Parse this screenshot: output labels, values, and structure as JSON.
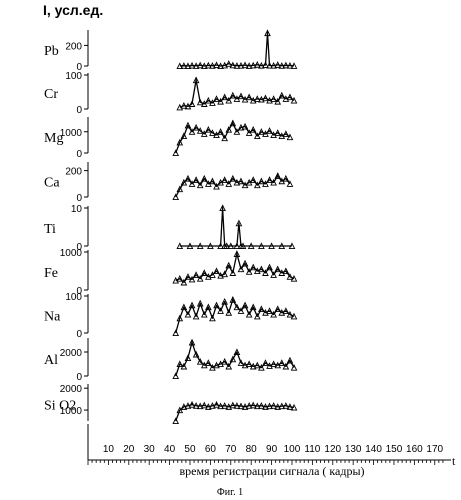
{
  "figure": {
    "yunit": "I, усл.ед.",
    "xlabel": "время регистрации сигнала ( кадры)",
    "xaxis_end": "t",
    "caption": "Фиг. 1"
  },
  "colors": {
    "ink": "#000000",
    "background": "#ffffff"
  },
  "chart_data": [
    {
      "type": "line",
      "label": "Pb",
      "yticks": [
        0,
        200
      ],
      "ylim": [
        0,
        330
      ],
      "x": [
        45,
        47,
        49,
        51,
        53,
        55,
        57,
        59,
        61,
        63,
        65,
        67,
        69,
        71,
        73,
        75,
        77,
        79,
        81,
        83,
        85,
        87,
        88,
        89,
        91,
        93,
        95,
        97,
        99,
        101
      ],
      "values": [
        0,
        3,
        0,
        5,
        2,
        8,
        0,
        6,
        3,
        10,
        0,
        6,
        22,
        8,
        3,
        4,
        9,
        2,
        6,
        13,
        4,
        10,
        320,
        5,
        4,
        12,
        3,
        7,
        4,
        2
      ]
    },
    {
      "type": "line",
      "label": "Cr",
      "yticks": [
        0,
        100
      ],
      "ylim": [
        0,
        100
      ],
      "x": [
        45,
        47,
        49,
        51,
        53,
        55,
        57,
        59,
        61,
        63,
        65,
        67,
        69,
        71,
        73,
        75,
        77,
        79,
        81,
        83,
        85,
        87,
        89,
        91,
        93,
        95,
        97,
        99,
        101
      ],
      "values": [
        5,
        10,
        8,
        15,
        85,
        20,
        15,
        25,
        18,
        30,
        22,
        35,
        25,
        40,
        30,
        38,
        28,
        35,
        25,
        30,
        28,
        32,
        25,
        30,
        22,
        40,
        30,
        35,
        25
      ]
    },
    {
      "type": "line",
      "label": "Mg",
      "yticks": [
        0,
        1000
      ],
      "ylim": [
        0,
        1600
      ],
      "x": [
        43,
        45,
        47,
        49,
        51,
        53,
        55,
        57,
        59,
        61,
        63,
        65,
        67,
        69,
        71,
        73,
        75,
        77,
        79,
        81,
        83,
        85,
        87,
        89,
        91,
        93,
        95,
        97,
        99
      ],
      "values": [
        0,
        500,
        800,
        1300,
        1000,
        1200,
        1050,
        900,
        1100,
        950,
        850,
        1000,
        700,
        1100,
        1400,
        1000,
        1200,
        1250,
        950,
        1100,
        800,
        1000,
        900,
        1050,
        850,
        950,
        800,
        900,
        750
      ]
    },
    {
      "type": "line",
      "label": "Ca",
      "yticks": [
        0,
        200
      ],
      "ylim": [
        0,
        250
      ],
      "x": [
        43,
        45,
        47,
        49,
        51,
        53,
        55,
        57,
        59,
        61,
        63,
        65,
        67,
        69,
        71,
        73,
        75,
        77,
        79,
        81,
        83,
        85,
        87,
        89,
        91,
        93,
        95,
        97,
        99
      ],
      "values": [
        0,
        60,
        110,
        140,
        100,
        130,
        90,
        140,
        100,
        120,
        80,
        110,
        130,
        100,
        140,
        110,
        120,
        90,
        110,
        130,
        90,
        120,
        100,
        130,
        110,
        160,
        120,
        140,
        100
      ]
    },
    {
      "type": "line",
      "label": "Ti",
      "yticks": [
        0,
        10
      ],
      "ylim": [
        0,
        10
      ],
      "x": [
        45,
        50,
        55,
        60,
        65,
        66,
        67,
        68,
        70,
        73,
        74,
        75,
        76,
        80,
        85,
        90,
        95,
        100
      ],
      "values": [
        0,
        0,
        0,
        0,
        0,
        10,
        0,
        0,
        0,
        0,
        6,
        0,
        0,
        0,
        0,
        0,
        0,
        0
      ]
    },
    {
      "type": "line",
      "label": "Fe",
      "yticks": [
        0,
        1000
      ],
      "ylim": [
        0,
        1000
      ],
      "x": [
        43,
        45,
        47,
        49,
        51,
        53,
        55,
        57,
        59,
        61,
        63,
        65,
        67,
        69,
        71,
        73,
        75,
        77,
        79,
        81,
        83,
        85,
        87,
        89,
        91,
        93,
        95,
        97,
        99,
        101
      ],
      "values": [
        250,
        300,
        200,
        350,
        280,
        400,
        300,
        450,
        350,
        400,
        500,
        380,
        420,
        650,
        450,
        950,
        550,
        700,
        480,
        600,
        500,
        550,
        450,
        600,
        400,
        550,
        450,
        500,
        350,
        300
      ]
    },
    {
      "type": "line",
      "label": "Na",
      "yticks": [
        0,
        100
      ],
      "ylim": [
        0,
        100
      ],
      "x": [
        43,
        45,
        47,
        49,
        51,
        53,
        55,
        57,
        59,
        61,
        63,
        65,
        67,
        69,
        71,
        73,
        75,
        77,
        79,
        81,
        83,
        85,
        87,
        89,
        91,
        93,
        95,
        97,
        99,
        101
      ],
      "values": [
        0,
        40,
        70,
        50,
        75,
        45,
        80,
        50,
        70,
        40,
        75,
        60,
        85,
        55,
        90,
        70,
        60,
        75,
        50,
        70,
        45,
        65,
        55,
        60,
        50,
        65,
        55,
        60,
        50,
        45
      ]
    },
    {
      "type": "line",
      "label": "Al",
      "yticks": [
        0,
        2000
      ],
      "ylim": [
        0,
        3000
      ],
      "x": [
        43,
        45,
        47,
        49,
        51,
        53,
        55,
        57,
        59,
        61,
        63,
        65,
        67,
        69,
        71,
        73,
        75,
        77,
        79,
        81,
        83,
        85,
        87,
        89,
        91,
        93,
        95,
        97,
        99,
        101
      ],
      "values": [
        0,
        1000,
        800,
        1500,
        2800,
        1800,
        1200,
        900,
        1100,
        700,
        900,
        1000,
        1200,
        800,
        1400,
        2000,
        1100,
        900,
        1000,
        800,
        900,
        700,
        1100,
        850,
        1000,
        900,
        1100,
        800,
        1300,
        700
      ]
    },
    {
      "type": "line",
      "label": "Si O2",
      "yticks": [
        1000,
        2000
      ],
      "ylim": [
        500,
        2100
      ],
      "x": [
        43,
        45,
        47,
        49,
        51,
        53,
        55,
        57,
        59,
        61,
        63,
        65,
        67,
        69,
        71,
        73,
        75,
        77,
        79,
        81,
        83,
        85,
        87,
        89,
        91,
        93,
        95,
        97,
        99,
        101
      ],
      "values": [
        500,
        1000,
        1150,
        1200,
        1250,
        1200,
        1180,
        1220,
        1150,
        1200,
        1250,
        1180,
        1200,
        1150,
        1220,
        1200,
        1180,
        1150,
        1200,
        1220,
        1180,
        1200,
        1150,
        1180,
        1200,
        1150,
        1180,
        1200,
        1150,
        1120
      ]
    }
  ],
  "xaxis": {
    "ticks": [
      10,
      20,
      30,
      40,
      50,
      60,
      70,
      80,
      90,
      100,
      110,
      120,
      130,
      140,
      150,
      160,
      170
    ],
    "range": [
      0,
      176
    ]
  }
}
